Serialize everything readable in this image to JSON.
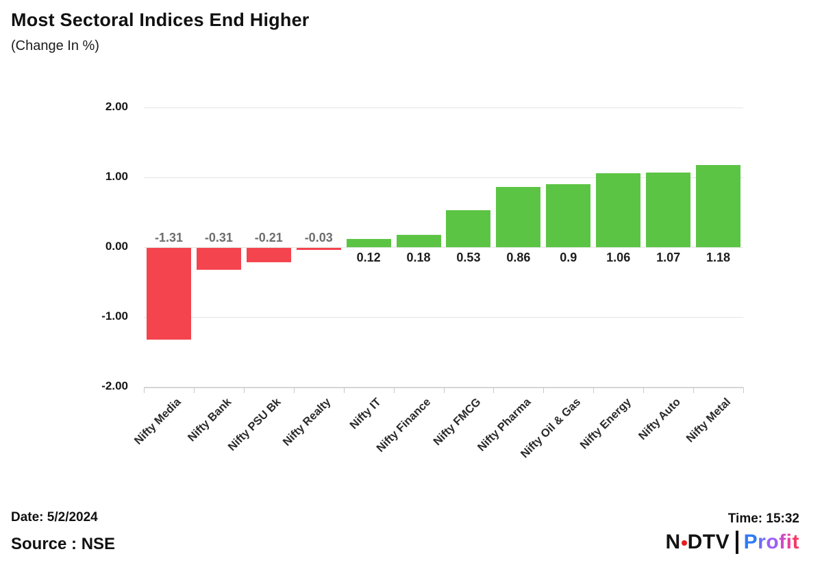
{
  "header": {
    "title": "Most Sectoral Indices End Higher",
    "subtitle": "(Change In %)"
  },
  "chart_data": {
    "type": "bar",
    "title": "Most Sectoral Indices End Higher",
    "subtitle": "(Change In %)",
    "categories": [
      "Nifty Media",
      "Nifty Bank",
      "Nifty PSU Bk",
      "Nifty Realty",
      "Nifty IT",
      "Nifty Finance",
      "Nifty FMCG",
      "Nifty Pharma",
      "Nifty Oil & Gas",
      "Nifty Energy",
      "Nifty Auto",
      "Nifty Metal"
    ],
    "values": [
      -1.31,
      -0.31,
      -0.21,
      -0.03,
      0.12,
      0.18,
      0.53,
      0.86,
      0.9,
      1.06,
      1.07,
      1.18
    ],
    "value_labels": [
      "-1.31",
      "-0.31",
      "-0.21",
      "-0.03",
      "0.12",
      "0.18",
      "0.53",
      "0.86",
      "0.9",
      "1.06",
      "1.07",
      "1.18"
    ],
    "xlabel": "",
    "ylabel": "",
    "ylim": [
      -2,
      2
    ],
    "yticks": [
      {
        "value": 2,
        "label": "2.00"
      },
      {
        "value": 1,
        "label": "1.00"
      },
      {
        "value": 0,
        "label": "0.00"
      },
      {
        "value": -1,
        "label": "-1.00"
      },
      {
        "value": -2,
        "label": "-2.00"
      }
    ],
    "grid": true,
    "legend": false,
    "colors": {
      "positive_bar": "#5cc444",
      "negative_bar": "#f4444e",
      "positive_label": "#1d1d1d",
      "negative_label": "#6d6d6d",
      "gridline": "#e4e4e4",
      "axis_line": "#d5d5d5"
    }
  },
  "footer": {
    "date": "Date: 5/2/2024",
    "source": "Source : NSE",
    "time": "Time: 15:32",
    "logo": {
      "ndtv_n": "N",
      "ndtv_rest": "DTV",
      "profit": "Profit",
      "profit_letter_colors": [
        "#2f7bf5",
        "#6b6cf7",
        "#9a5ff7",
        "#cd4bc9",
        "#ea3f9a",
        "#f43a67"
      ],
      "dot_color": "#e31e25"
    }
  }
}
